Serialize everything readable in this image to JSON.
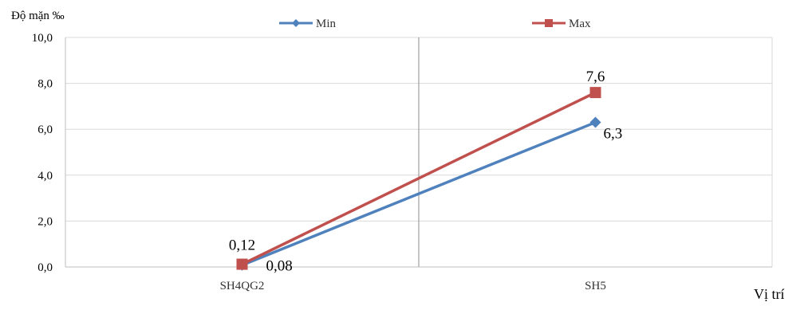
{
  "chart_data": {
    "type": "line",
    "title": "",
    "ylabel": "Độ mặn ‰",
    "xlabel": "Vị trí",
    "categories": [
      "SH4QG2",
      "SH5"
    ],
    "ylim": [
      0,
      10
    ],
    "yticks": [
      0,
      2,
      4,
      6,
      8,
      10
    ],
    "ytick_labels": [
      "0,0",
      "2,0",
      "4,0",
      "6,0",
      "8,0",
      "10,0"
    ],
    "grid": true,
    "legend_position": "top",
    "series": [
      {
        "name": "Min",
        "values": [
          0.08,
          6.3
        ],
        "value_labels": [
          "0,08",
          "6,3"
        ],
        "color": "#4f81bd",
        "marker": "diamond"
      },
      {
        "name": "Max",
        "values": [
          0.12,
          7.6
        ],
        "value_labels": [
          "0,12",
          "7,6"
        ],
        "color": "#c0504d",
        "marker": "square"
      }
    ]
  }
}
